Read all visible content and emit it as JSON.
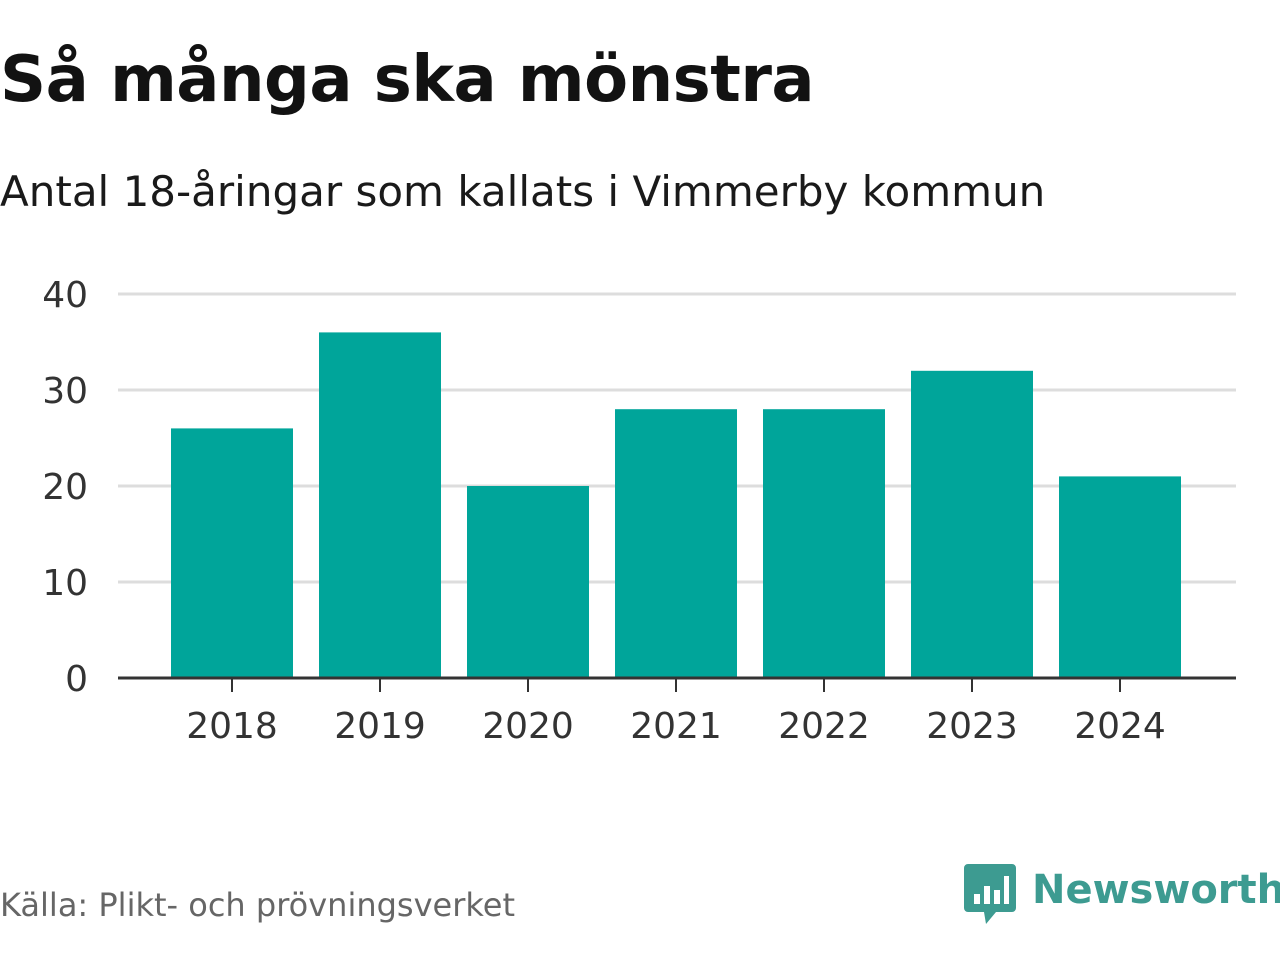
{
  "header": {
    "title": "Så många ska mönstra",
    "subtitle": "Antal 18-åringar som kallats i Vimmerby kommun"
  },
  "footer": {
    "source": "Källa: Plikt- och prövningsverket",
    "brand_name": "Newsworthy",
    "brand_icon": "newsworthy-logo-icon",
    "brand_color": "#3d9b91"
  },
  "colors": {
    "bar": "#00a59a",
    "grid": "#dddddd",
    "axis": "#333333",
    "tick_text": "#333333"
  },
  "chart_data": {
    "type": "bar",
    "title": "Så många ska mönstra",
    "subtitle": "Antal 18-åringar som kallats i Vimmerby kommun",
    "xlabel": "",
    "ylabel": "",
    "categories": [
      "2018",
      "2019",
      "2020",
      "2021",
      "2022",
      "2023",
      "2024"
    ],
    "values": [
      26,
      36,
      20,
      28,
      28,
      32,
      21
    ],
    "ylim": [
      0,
      40
    ],
    "yticks": [
      0,
      10,
      20,
      30,
      40
    ],
    "grid": true,
    "legend": "none"
  }
}
